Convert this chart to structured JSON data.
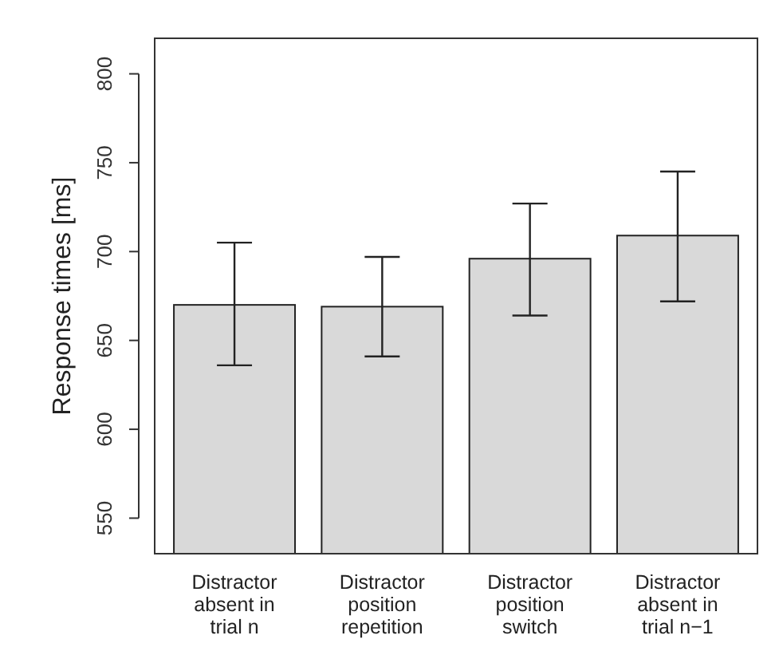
{
  "chart_data": {
    "type": "bar",
    "ylabel": "Response times [ms]",
    "categories": [
      "Distractor absent in trial n",
      "Distractor position repetition",
      "Distractor position switch",
      "Distractor absent in trial n−1"
    ],
    "values": [
      670,
      669,
      696,
      709
    ],
    "errors": [
      [
        636,
        705
      ],
      [
        641,
        697
      ],
      [
        664,
        727
      ],
      [
        672,
        745
      ]
    ],
    "color": "#d9d9d9",
    "ylim": [
      530,
      820
    ],
    "yticks": [
      550,
      600,
      650,
      700,
      750,
      800
    ],
    "grid": false
  }
}
